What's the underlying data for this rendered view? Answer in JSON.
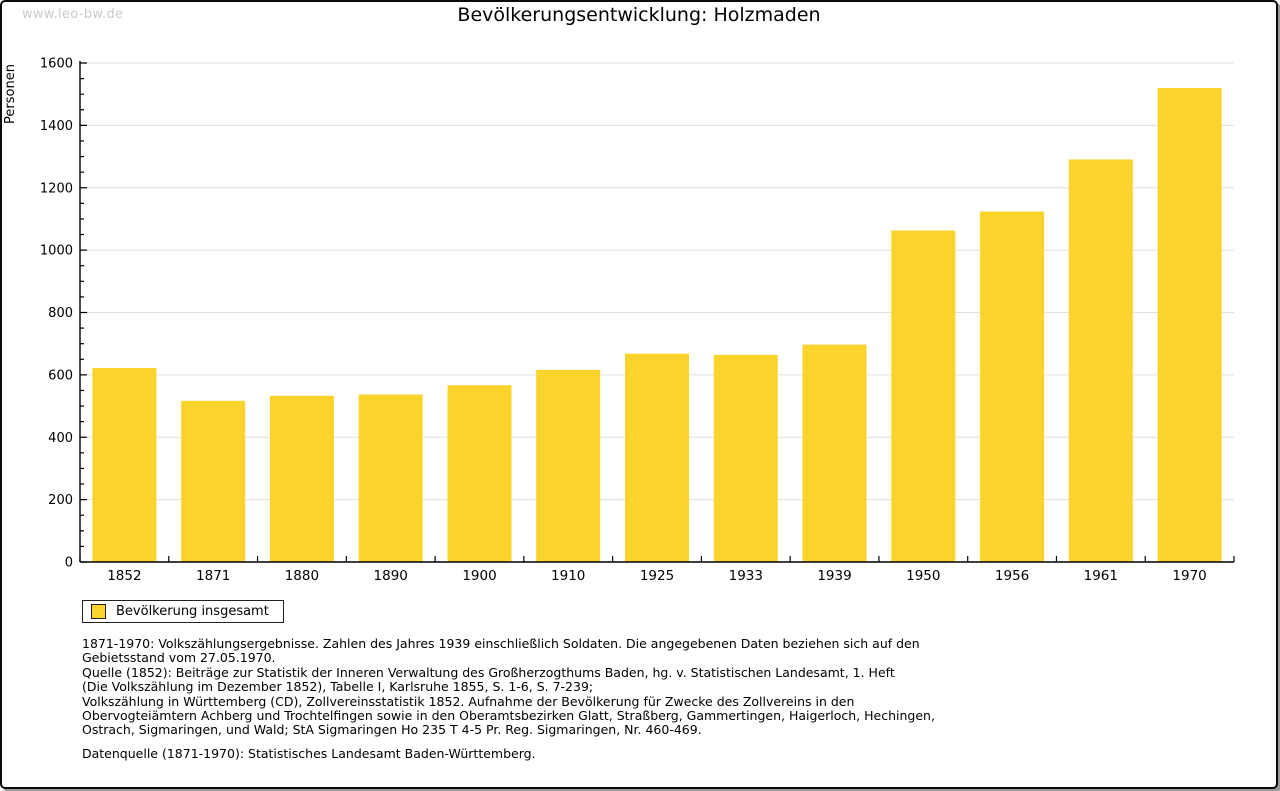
{
  "header": {
    "watermark": "www.leo-bw.de",
    "title": "Bevölkerungsentwicklung: Holzmaden"
  },
  "legend": {
    "label": "Bevölkerung insgesamt"
  },
  "footnotes": {
    "lines": [
      "1871-1970: Volkszählungsergebnisse. Zahlen des Jahres 1939 einschließlich Soldaten. Die angegebenen Daten beziehen sich auf den",
      "Gebietsstand vom 27.05.1970.",
      "Quelle (1852): Beiträge zur Statistik der Inneren Verwaltung des Großherzogthums Baden, hg. v. Statistischen Landesamt, 1. Heft",
      "(Die Volkszählung im Dezember 1852), Tabelle I, Karlsruhe 1855, S. 1-6, S. 7-239;",
      "Volkszählung in Württemberg (CD), Zollvereinsstatistik 1852. Aufnahme der Bevölkerung für Zwecke des Zollvereins in den",
      "Obervogteiämtern Achberg und Trochtelfingen sowie in den Oberamtsbezirken Glatt, Straßberg, Gammertingen, Haigerloch, Hechingen,",
      "Ostrach, Sigmaringen, und Wald; StA Sigmaringen Ho 235 T 4-5 Pr. Reg. Sigmaringen, Nr. 460-469."
    ],
    "datenquelle": "Datenquelle (1871-1970): Statistisches Landesamt Baden-Württemberg."
  },
  "colors": {
    "bar": "#FBD32D",
    "grid": "#E0E0E0",
    "axis": "#000000",
    "watermark": "#CBCBCB"
  },
  "chart_data": {
    "type": "bar",
    "title": "Bevölkerungsentwicklung: Holzmaden",
    "xlabel": "",
    "ylabel": "Personen",
    "categories": [
      "1852",
      "1871",
      "1880",
      "1890",
      "1900",
      "1910",
      "1925",
      "1933",
      "1939",
      "1950",
      "1956",
      "1961",
      "1970"
    ],
    "series": [
      {
        "name": "Bevölkerung insgesamt",
        "color": "#FBD32D",
        "values": [
          622,
          517,
          533,
          537,
          567,
          616,
          668,
          664,
          697,
          1063,
          1124,
          1291,
          1520
        ]
      }
    ],
    "ylim": [
      0,
      1600
    ],
    "ytick_major": 200,
    "ytick_minor": 50,
    "grid": true,
    "legend_position": "bottom-left"
  }
}
